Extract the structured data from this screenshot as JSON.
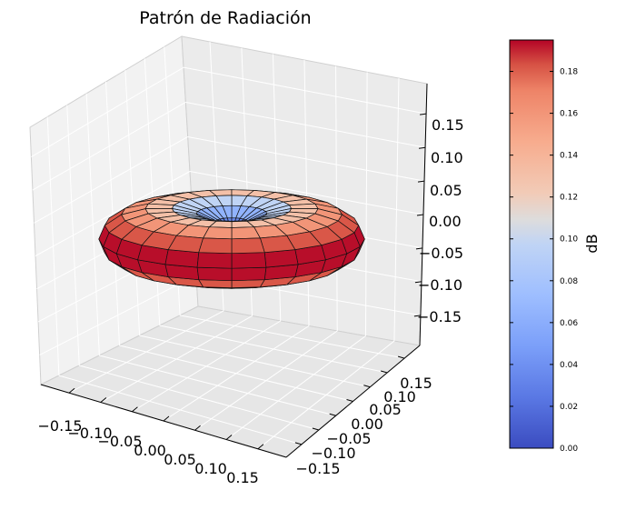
{
  "chart_data": {
    "type": "surface3d",
    "title": "Patrón de Radiación",
    "colormap": "coolwarm",
    "colormap_colors": {
      "low": "#3b4cc0",
      "mid": "#dddddd",
      "high": "#b40426"
    },
    "surface_shape": "torus",
    "x_ticks": [
      "−0.15",
      "−0.10",
      "−0.05",
      "0.00",
      "0.05",
      "0.10",
      "0.15"
    ],
    "y_ticks": [
      "−0.15",
      "−0.10",
      "−0.05",
      "0.00",
      "0.05",
      "0.10",
      "0.15"
    ],
    "z_ticks": [
      "−0.15",
      "−0.10",
      "−0.05",
      "0.00",
      "0.05",
      "0.10",
      "0.15"
    ],
    "xlim": [
      -0.195,
      0.195
    ],
    "ylim": [
      -0.195,
      0.195
    ],
    "zlim": [
      -0.195,
      0.195
    ],
    "grid": true,
    "colorbar": {
      "label": "dB",
      "range": [
        0,
        0.195
      ],
      "ticks": [
        "0.00",
        "0.02",
        "0.04",
        "0.06",
        "0.08",
        "0.10",
        "0.12",
        "0.14",
        "0.16",
        "0.18"
      ]
    }
  }
}
